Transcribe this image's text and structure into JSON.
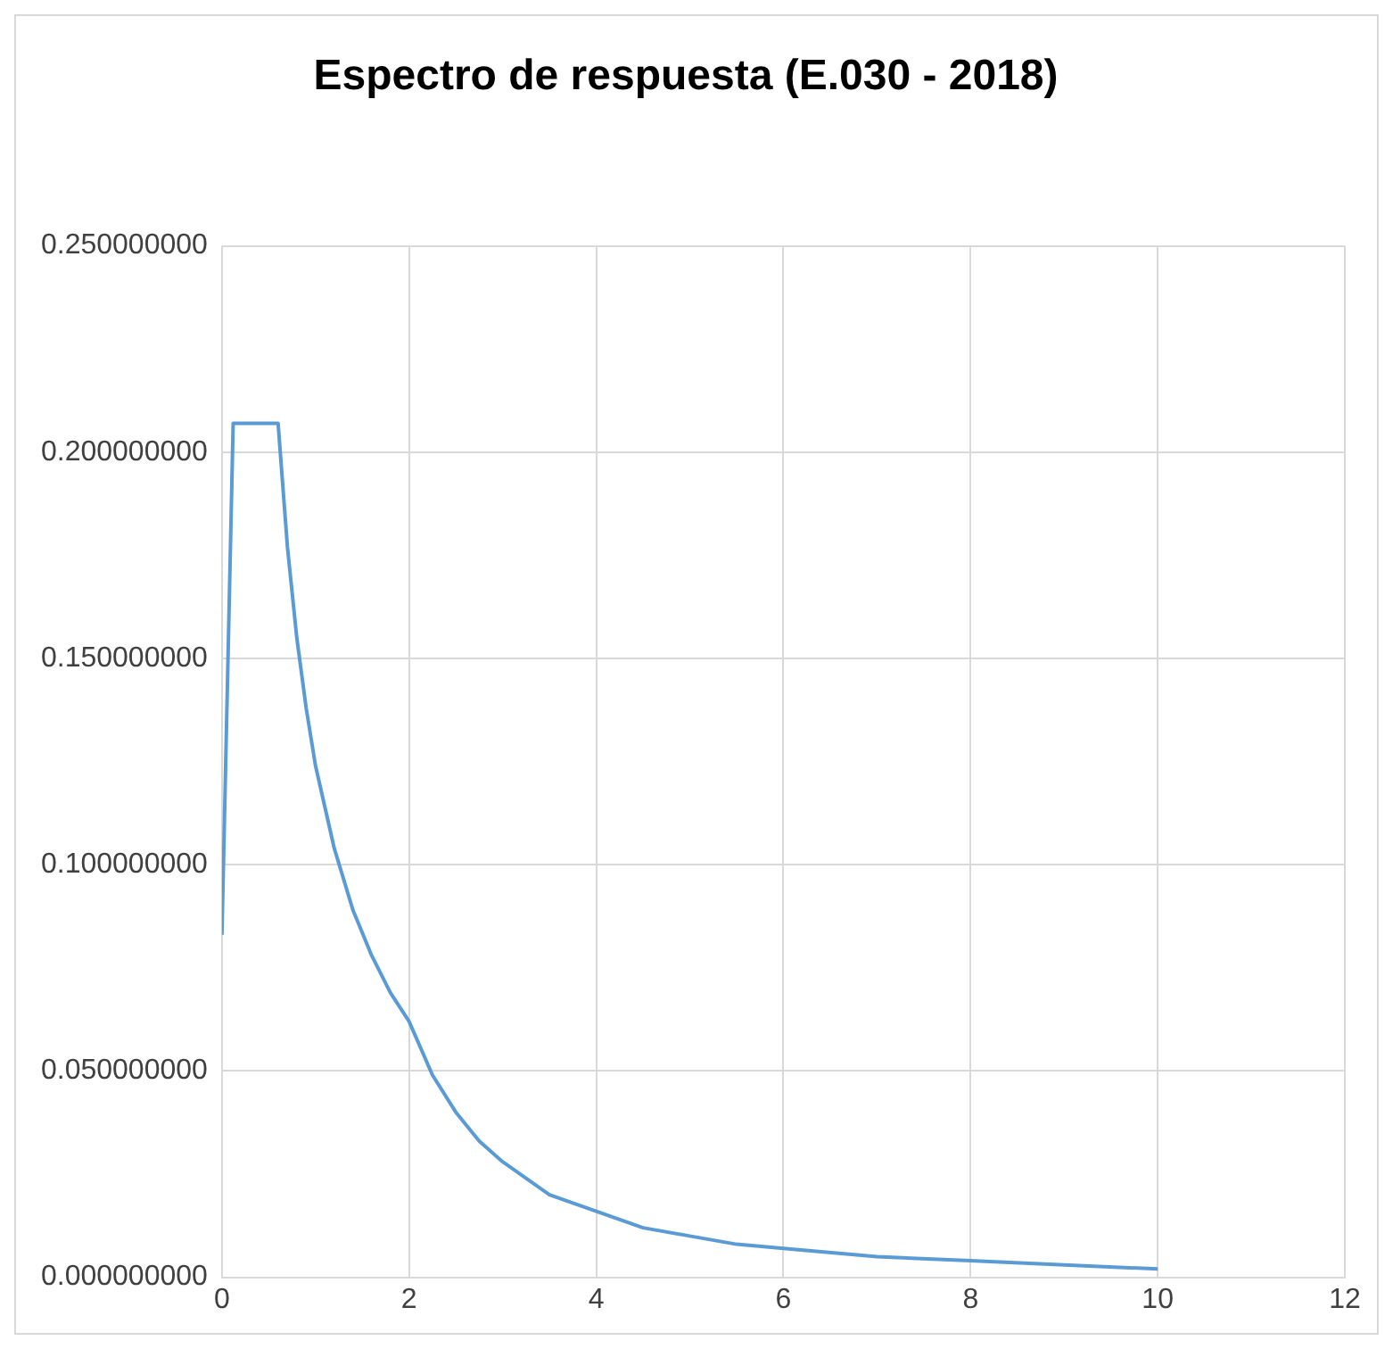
{
  "chart_data": {
    "type": "line",
    "title": "Espectro de respuesta (E.030 - 2018)",
    "x": [
      0,
      0.12,
      0.6,
      0.7,
      0.8,
      0.9,
      1.0,
      1.2,
      1.4,
      1.6,
      1.8,
      2.0,
      2.25,
      2.5,
      2.75,
      3,
      3.5,
      4,
      4.5,
      5,
      5.5,
      6,
      7,
      8,
      9,
      10
    ],
    "values": [
      0.083,
      0.207,
      0.207,
      0.177,
      0.155,
      0.138,
      0.124,
      0.104,
      0.089,
      0.078,
      0.069,
      0.062,
      0.049,
      0.04,
      0.033,
      0.028,
      0.02,
      0.016,
      0.012,
      0.01,
      0.008,
      0.007,
      0.005,
      0.004,
      0.003,
      0.002
    ],
    "color": "#5b9bd5",
    "marker": "none",
    "line_style": "solid",
    "xlim": [
      0,
      12
    ],
    "xticks": [
      0,
      2,
      4,
      6,
      8,
      10,
      12
    ],
    "ylim": [
      0,
      0.25
    ],
    "yticks": [
      {
        "value": 0,
        "label": "0.000000000"
      },
      {
        "value": 0.05,
        "label": "0.050000000"
      },
      {
        "value": 0.1,
        "label": "0.100000000"
      },
      {
        "value": 0.15,
        "label": "0.150000000"
      },
      {
        "value": 0.2,
        "label": "0.200000000"
      },
      {
        "value": 0.25,
        "label": "0.250000000"
      }
    ],
    "grid": true
  }
}
